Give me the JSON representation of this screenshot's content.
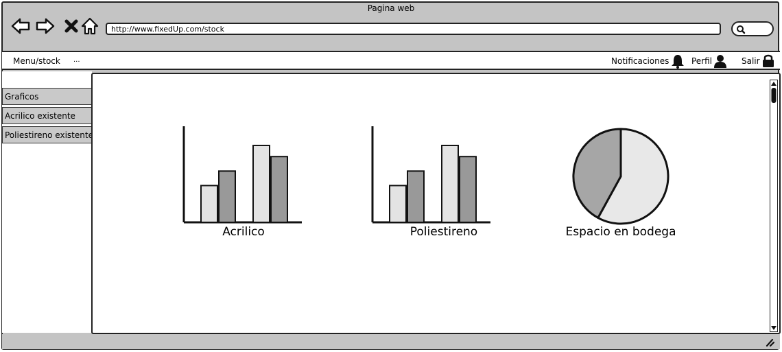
{
  "window": {
    "title": "Pagina web"
  },
  "browser": {
    "url": "http://www.fixedUp.com/stock",
    "nav_icons": [
      "back-arrow-icon",
      "forward-arrow-icon",
      "close-icon",
      "home-icon"
    ],
    "search_icon": "search-icon"
  },
  "menubar": {
    "breadcrumb": "Menu/stock",
    "ellipsis": "...",
    "notifications_label": "Notificaciones",
    "notifications_icon": "bell-icon",
    "profile_label": "Perfil",
    "profile_icon": "user-icon",
    "logout_label": "Salir",
    "logout_icon": "lock-icon"
  },
  "sidebar": {
    "items": [
      {
        "label": "Graficos"
      },
      {
        "label": "Acrilico existente"
      },
      {
        "label": "Poliestireno existente"
      }
    ]
  },
  "colors": {
    "bar_light": "#e3e3e3",
    "bar_dark": "#999999",
    "pie_light": "#e8e8e8",
    "pie_dark": "#a6a6a6",
    "chrome": "#c4c4c4"
  },
  "chart_data": [
    {
      "type": "bar",
      "title": "Acrilico",
      "categories": [
        "",
        ""
      ],
      "series": [
        {
          "values": [
            33,
            46
          ]
        },
        {
          "values": [
            69,
            59
          ]
        }
      ],
      "ylim": [
        0,
        85
      ]
    },
    {
      "type": "bar",
      "title": "Poliestireno",
      "categories": [
        "",
        ""
      ],
      "series": [
        {
          "values": [
            33,
            46
          ]
        },
        {
          "values": [
            69,
            59
          ]
        }
      ],
      "ylim": [
        0,
        85
      ]
    },
    {
      "type": "pie",
      "title": "Espacio en bodega",
      "values": [
        58,
        42
      ]
    }
  ]
}
